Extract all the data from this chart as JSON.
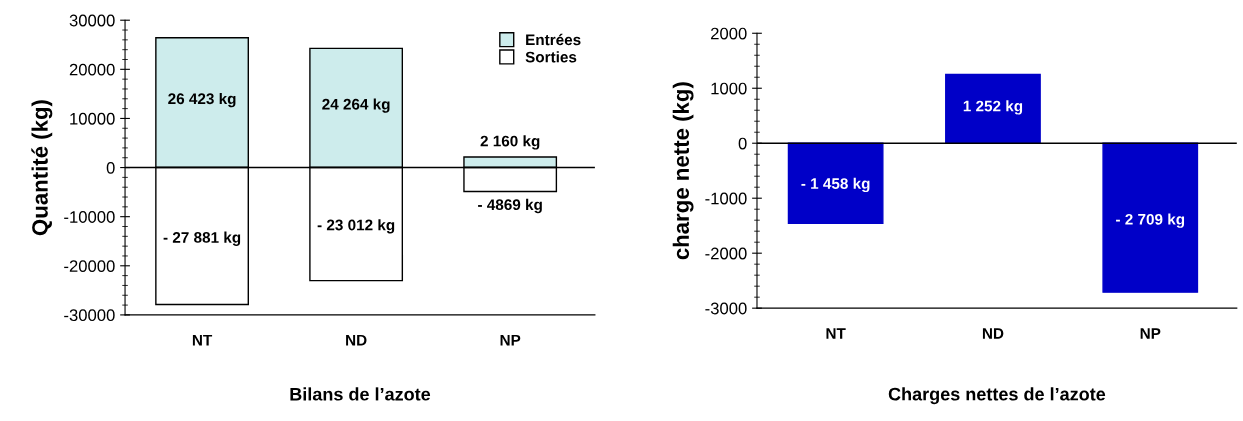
{
  "chart_data": [
    {
      "type": "bar",
      "title": "Bilans de l’azote",
      "ylabel": "Quantité (kg)",
      "categories": [
        "NT",
        "ND",
        "NP"
      ],
      "series": [
        {
          "name": "Entrées",
          "color": "#cdecec",
          "values": [
            26423,
            24264,
            2160
          ],
          "value_labels": [
            "26 423 kg",
            "24 264 kg",
            "2 160 kg"
          ]
        },
        {
          "name": "Sorties",
          "color": "#ffffff",
          "values": [
            -27881,
            -23012,
            -4869
          ],
          "value_labels": [
            "- 27 881 kg",
            "- 23 012 kg",
            "- 4869 kg"
          ]
        }
      ],
      "ylim": [
        -30000,
        30000
      ],
      "yticks": [
        -30000,
        -20000,
        -10000,
        0,
        10000,
        20000,
        30000
      ],
      "ref_lines": [
        {
          "axis": "y",
          "value": 0,
          "color": "#000000"
        }
      ],
      "legend": "top right",
      "grid": false,
      "stacked": true
    },
    {
      "type": "bar",
      "title": "Charges nettes de l’azote",
      "ylabel": "charge nette (kg)",
      "categories": [
        "NT",
        "ND",
        "NP"
      ],
      "series": [
        {
          "color": "#0000c8",
          "values": [
            -1458,
            1252,
            -2709
          ],
          "value_labels": [
            "- 1 458 kg",
            "1 252 kg",
            "- 2 709 kg"
          ]
        }
      ],
      "ylim": [
        -3000,
        2000
      ],
      "yticks": [
        -3000,
        -2000,
        -1000,
        0,
        1000,
        2000
      ],
      "ref_lines": [
        {
          "axis": "y",
          "value": 0,
          "color": "#000000"
        }
      ],
      "legend": false,
      "grid": false
    }
  ]
}
